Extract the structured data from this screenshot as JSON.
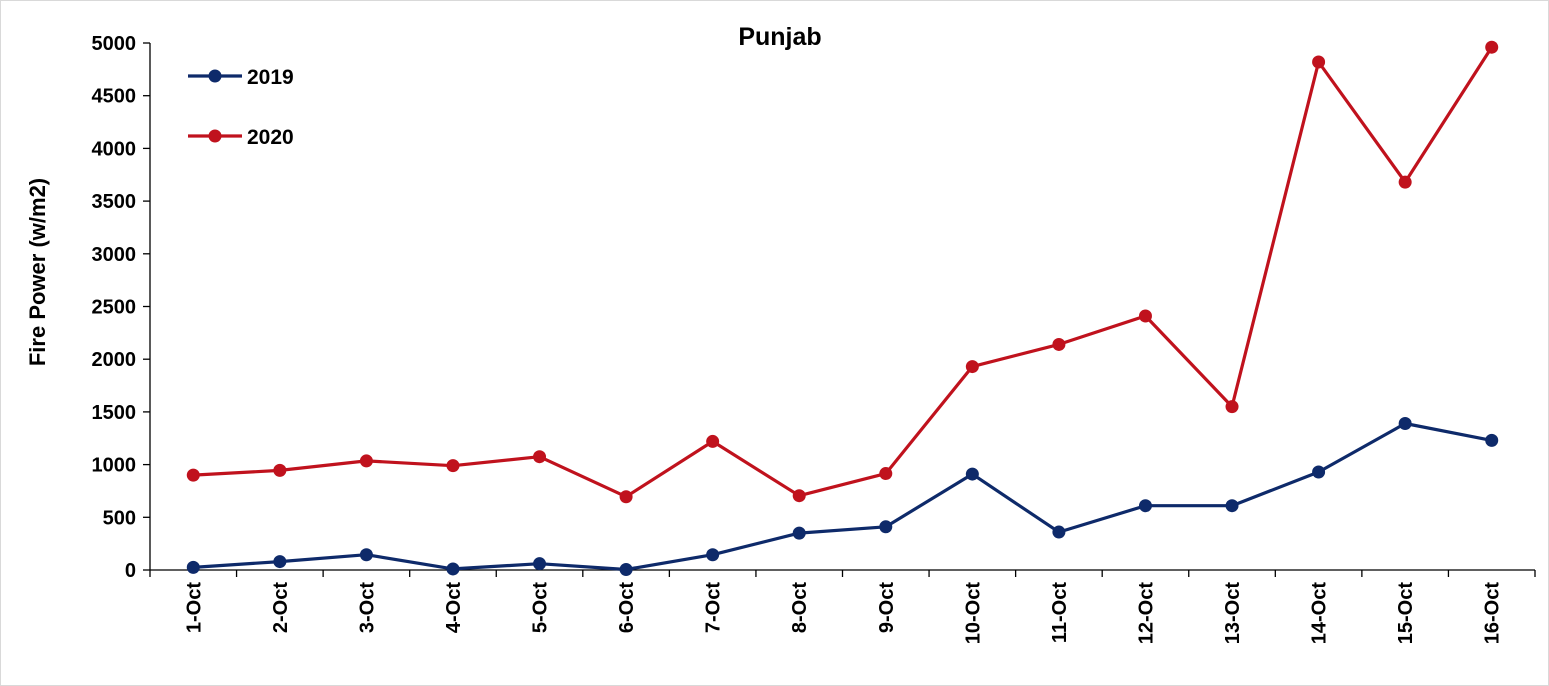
{
  "chart_data": {
    "type": "line",
    "title": "Punjab",
    "xlabel": "",
    "ylabel": "Fire Power (w/m2)",
    "categories": [
      "1-Oct",
      "2-Oct",
      "3-Oct",
      "4-Oct",
      "5-Oct",
      "6-Oct",
      "7-Oct",
      "8-Oct",
      "9-Oct",
      "10-Oct",
      "11-Oct",
      "12-Oct",
      "13-Oct",
      "14-Oct",
      "15-Oct",
      "16-Oct"
    ],
    "ylim": [
      0,
      5000
    ],
    "yticks": [
      "0",
      "500",
      "1000",
      "1500",
      "2000",
      "2500",
      "3000",
      "3500",
      "4000",
      "4500",
      "5000"
    ],
    "grid": false,
    "legend_position": "top-left",
    "series": [
      {
        "name": "2019",
        "color": "#0e2a6a",
        "values": [
          25,
          80,
          145,
          10,
          60,
          5,
          145,
          350,
          410,
          910,
          360,
          610,
          610,
          930,
          1390,
          1230
        ]
      },
      {
        "name": "2020",
        "color": "#c0121d",
        "values": [
          900,
          945,
          1035,
          990,
          1075,
          695,
          1220,
          705,
          915,
          1930,
          2140,
          2410,
          1550,
          4820,
          3680,
          4960
        ]
      }
    ]
  }
}
